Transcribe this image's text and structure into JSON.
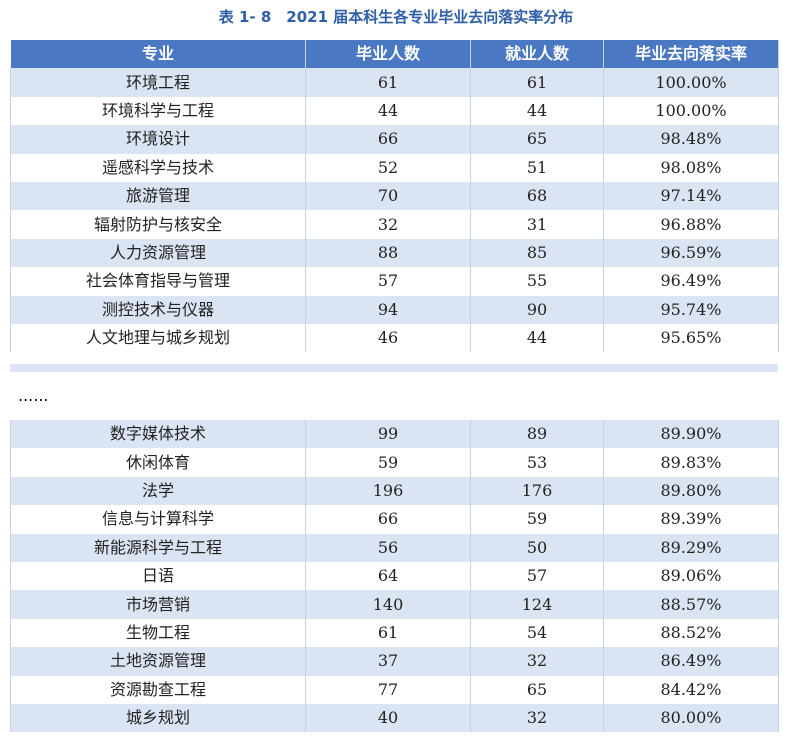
{
  "title": "表 1- 8　2021 届本科生各专业毕业去向落实率分布",
  "table": {
    "headers": [
      "专业",
      "毕业人数",
      "就业人数",
      "毕业去向落实率"
    ],
    "top_rows": [
      [
        "环境工程",
        "61",
        "61",
        "100.00%"
      ],
      [
        "环境科学与工程",
        "44",
        "44",
        "100.00%"
      ],
      [
        "环境设计",
        "66",
        "65",
        "98.48%"
      ],
      [
        "遥感科学与技术",
        "52",
        "51",
        "98.08%"
      ],
      [
        "旅游管理",
        "70",
        "68",
        "97.14%"
      ],
      [
        "辐射防护与核安全",
        "32",
        "31",
        "96.88%"
      ],
      [
        "人力资源管理",
        "88",
        "85",
        "96.59%"
      ],
      [
        "社会体育指导与管理",
        "57",
        "55",
        "96.49%"
      ],
      [
        "测控技术与仪器",
        "94",
        "90",
        "95.74%"
      ],
      [
        "人文地理与城乡规划",
        "46",
        "44",
        "95.65%"
      ]
    ],
    "ellipsis": "......",
    "bottom_rows": [
      [
        "数字媒体技术",
        "99",
        "89",
        "89.90%"
      ],
      [
        "休闲体育",
        "59",
        "53",
        "89.83%"
      ],
      [
        "法学",
        "196",
        "176",
        "89.80%"
      ],
      [
        "信息与计算科学",
        "66",
        "59",
        "89.39%"
      ],
      [
        "新能源科学与工程",
        "56",
        "50",
        "89.29%"
      ],
      [
        "日语",
        "64",
        "57",
        "89.06%"
      ],
      [
        "市场营销",
        "140",
        "124",
        "88.57%"
      ],
      [
        "生物工程",
        "61",
        "54",
        "88.52%"
      ],
      [
        "土地资源管理",
        "37",
        "32",
        "86.49%"
      ],
      [
        "资源勘查工程",
        "77",
        "65",
        "84.42%"
      ],
      [
        "城乡规划",
        "40",
        "32",
        "80.00%"
      ]
    ]
  }
}
